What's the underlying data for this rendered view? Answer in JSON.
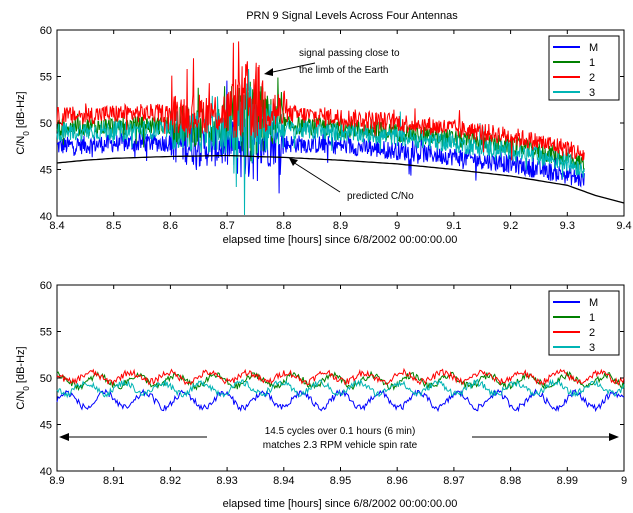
{
  "chart_data": [
    {
      "type": "line",
      "title": "PRN 9 Signal Levels Across Four Antennas",
      "xlabel": "elapsed time [hours] since 6/8/2002 00:00:00.00",
      "ylabel_main": "C/N",
      "ylabel_sub": "0",
      "ylabel_rest": " [dB-Hz]",
      "xlim": [
        8.4,
        9.4
      ],
      "ylim": [
        40,
        60
      ],
      "xticks": [
        "8.4",
        "8.5",
        "8.6",
        "8.7",
        "8.8",
        "8.9",
        "9",
        "9.1",
        "9.2",
        "9.3",
        "9.4"
      ],
      "yticks": [
        "40",
        "45",
        "50",
        "55",
        "60"
      ],
      "legend_position": "top-right",
      "series": [
        {
          "name": "M",
          "color": "#0000ff",
          "x": [
            8.4,
            8.5,
            8.6,
            8.65,
            8.7,
            8.73,
            8.75,
            8.78,
            8.8,
            8.9,
            9.0,
            9.1,
            9.2,
            9.3,
            9.33
          ],
          "y": [
            47.5,
            47.8,
            47.9,
            47.5,
            47.5,
            48.0,
            48.5,
            48.0,
            47.8,
            47.6,
            47.0,
            46.4,
            45.6,
            44.4,
            43.8
          ]
        },
        {
          "name": "1",
          "color": "#008000",
          "x": [
            8.4,
            8.5,
            8.6,
            8.65,
            8.7,
            8.73,
            8.75,
            8.78,
            8.8,
            8.9,
            9.0,
            9.1,
            9.2,
            9.3,
            9.33
          ],
          "y": [
            49.5,
            49.7,
            49.8,
            49.6,
            49.6,
            50.2,
            50.5,
            50.0,
            49.8,
            49.5,
            49.0,
            48.3,
            47.6,
            46.3,
            45.6
          ]
        },
        {
          "name": "2",
          "color": "#ff0000",
          "x": [
            8.4,
            8.5,
            8.6,
            8.65,
            8.7,
            8.73,
            8.75,
            8.78,
            8.8,
            8.9,
            9.0,
            9.1,
            9.2,
            9.3,
            9.33
          ],
          "y": [
            50.7,
            51.0,
            51.1,
            51.0,
            51.2,
            52.0,
            52.5,
            51.5,
            51.0,
            50.6,
            50.1,
            49.4,
            48.6,
            47.3,
            46.5
          ]
        },
        {
          "name": "3",
          "color": "#00b4b4",
          "x": [
            8.4,
            8.5,
            8.6,
            8.65,
            8.7,
            8.73,
            8.75,
            8.78,
            8.8,
            8.9,
            9.0,
            9.1,
            9.2,
            9.3,
            9.33
          ],
          "y": [
            49.0,
            49.2,
            49.3,
            49.0,
            49.0,
            49.8,
            50.5,
            49.7,
            49.4,
            49.0,
            48.5,
            47.8,
            47.0,
            45.8,
            45.0
          ]
        },
        {
          "name": "predicted C/No",
          "color": "#000000",
          "x": [
            8.4,
            8.45,
            8.5,
            8.6,
            8.7,
            8.8,
            8.9,
            9.0,
            9.1,
            9.2,
            9.3,
            9.35,
            9.4
          ],
          "y": [
            45.7,
            46.0,
            46.2,
            46.4,
            46.5,
            46.3,
            46.0,
            45.6,
            45.0,
            44.3,
            43.3,
            42.2,
            41.4
          ]
        }
      ],
      "annotations": [
        {
          "text_lines": [
            "signal passing close to",
            "the limb of the Earth"
          ],
          "x": 8.77,
          "y": 55.6
        },
        {
          "text_lines": [
            "predicted C/No"
          ],
          "x": 8.8,
          "y": 46.5
        }
      ]
    },
    {
      "type": "line",
      "title": "",
      "xlabel": "elapsed time [hours] since 6/8/2002 00:00:00.00",
      "ylabel_main": "C/N",
      "ylabel_sub": "0",
      "ylabel_rest": " [dB-Hz]",
      "xlim": [
        8.9,
        9.0
      ],
      "ylim": [
        40,
        60
      ],
      "xticks": [
        "8.9",
        "8.91",
        "8.92",
        "8.93",
        "8.94",
        "8.95",
        "8.96",
        "8.97",
        "8.98",
        "8.99",
        "9"
      ],
      "yticks": [
        "40",
        "45",
        "50",
        "55",
        "60"
      ],
      "legend_position": "top-right",
      "cycles": 14.5,
      "series": [
        {
          "name": "M",
          "color": "#0000ff",
          "mean": 47.6,
          "amplitude": 0.8
        },
        {
          "name": "1",
          "color": "#008000",
          "mean": 49.7,
          "amplitude": 0.6
        },
        {
          "name": "2",
          "color": "#ff0000",
          "mean": 50.1,
          "amplitude": 0.5
        },
        {
          "name": "3",
          "color": "#00b4b4",
          "mean": 48.9,
          "amplitude": 0.6
        }
      ],
      "annotation": {
        "text_lines": [
          "14.5 cycles over 0.1 hours (6 min)",
          "matches 2.3 RPM vehicle spin rate"
        ],
        "y": 45
      }
    }
  ]
}
